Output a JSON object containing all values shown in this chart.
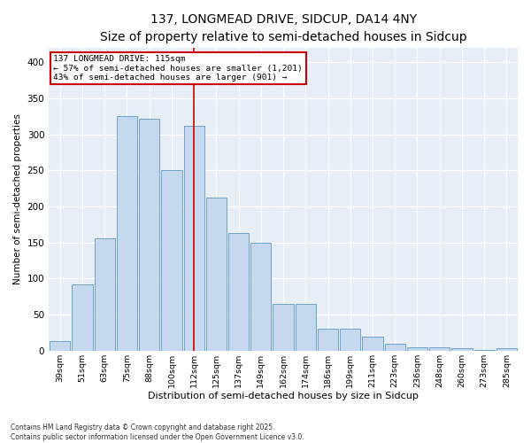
{
  "title1": "137, LONGMEAD DRIVE, SIDCUP, DA14 4NY",
  "title2": "Size of property relative to semi-detached houses in Sidcup",
  "xlabel": "Distribution of semi-detached houses by size in Sidcup",
  "ylabel": "Number of semi-detached properties",
  "categories": [
    "39sqm",
    "51sqm",
    "63sqm",
    "75sqm",
    "88sqm",
    "100sqm",
    "112sqm",
    "125sqm",
    "137sqm",
    "149sqm",
    "162sqm",
    "174sqm",
    "186sqm",
    "199sqm",
    "211sqm",
    "223sqm",
    "236sqm",
    "248sqm",
    "260sqm",
    "273sqm",
    "285sqm"
  ],
  "values": [
    13,
    92,
    156,
    325,
    322,
    250,
    312,
    212,
    163,
    150,
    65,
    65,
    30,
    30,
    20,
    10,
    5,
    5,
    3,
    1,
    3
  ],
  "bar_color": "#c5d8ed",
  "bar_edge_color": "#6ba3c8",
  "vline_x_index": 6,
  "vline_color": "#cc0000",
  "annotation_title": "137 LONGMEAD DRIVE: 115sqm",
  "annotation_line1": "← 57% of semi-detached houses are smaller (1,201)",
  "annotation_line2": "43% of semi-detached houses are larger (901) →",
  "annotation_box_edgecolor": "#cc0000",
  "ylim": [
    0,
    420
  ],
  "yticks": [
    0,
    50,
    100,
    150,
    200,
    250,
    300,
    350,
    400
  ],
  "footer1": "Contains HM Land Registry data © Crown copyright and database right 2025.",
  "footer2": "Contains public sector information licensed under the Open Government Licence v3.0.",
  "bg_color": "#e8eef5",
  "plot_bg_color": "#e8eef5",
  "fig_bg_color": "#ffffff",
  "grid_color": "#ffffff",
  "title1_fontsize": 10,
  "title2_fontsize": 9
}
